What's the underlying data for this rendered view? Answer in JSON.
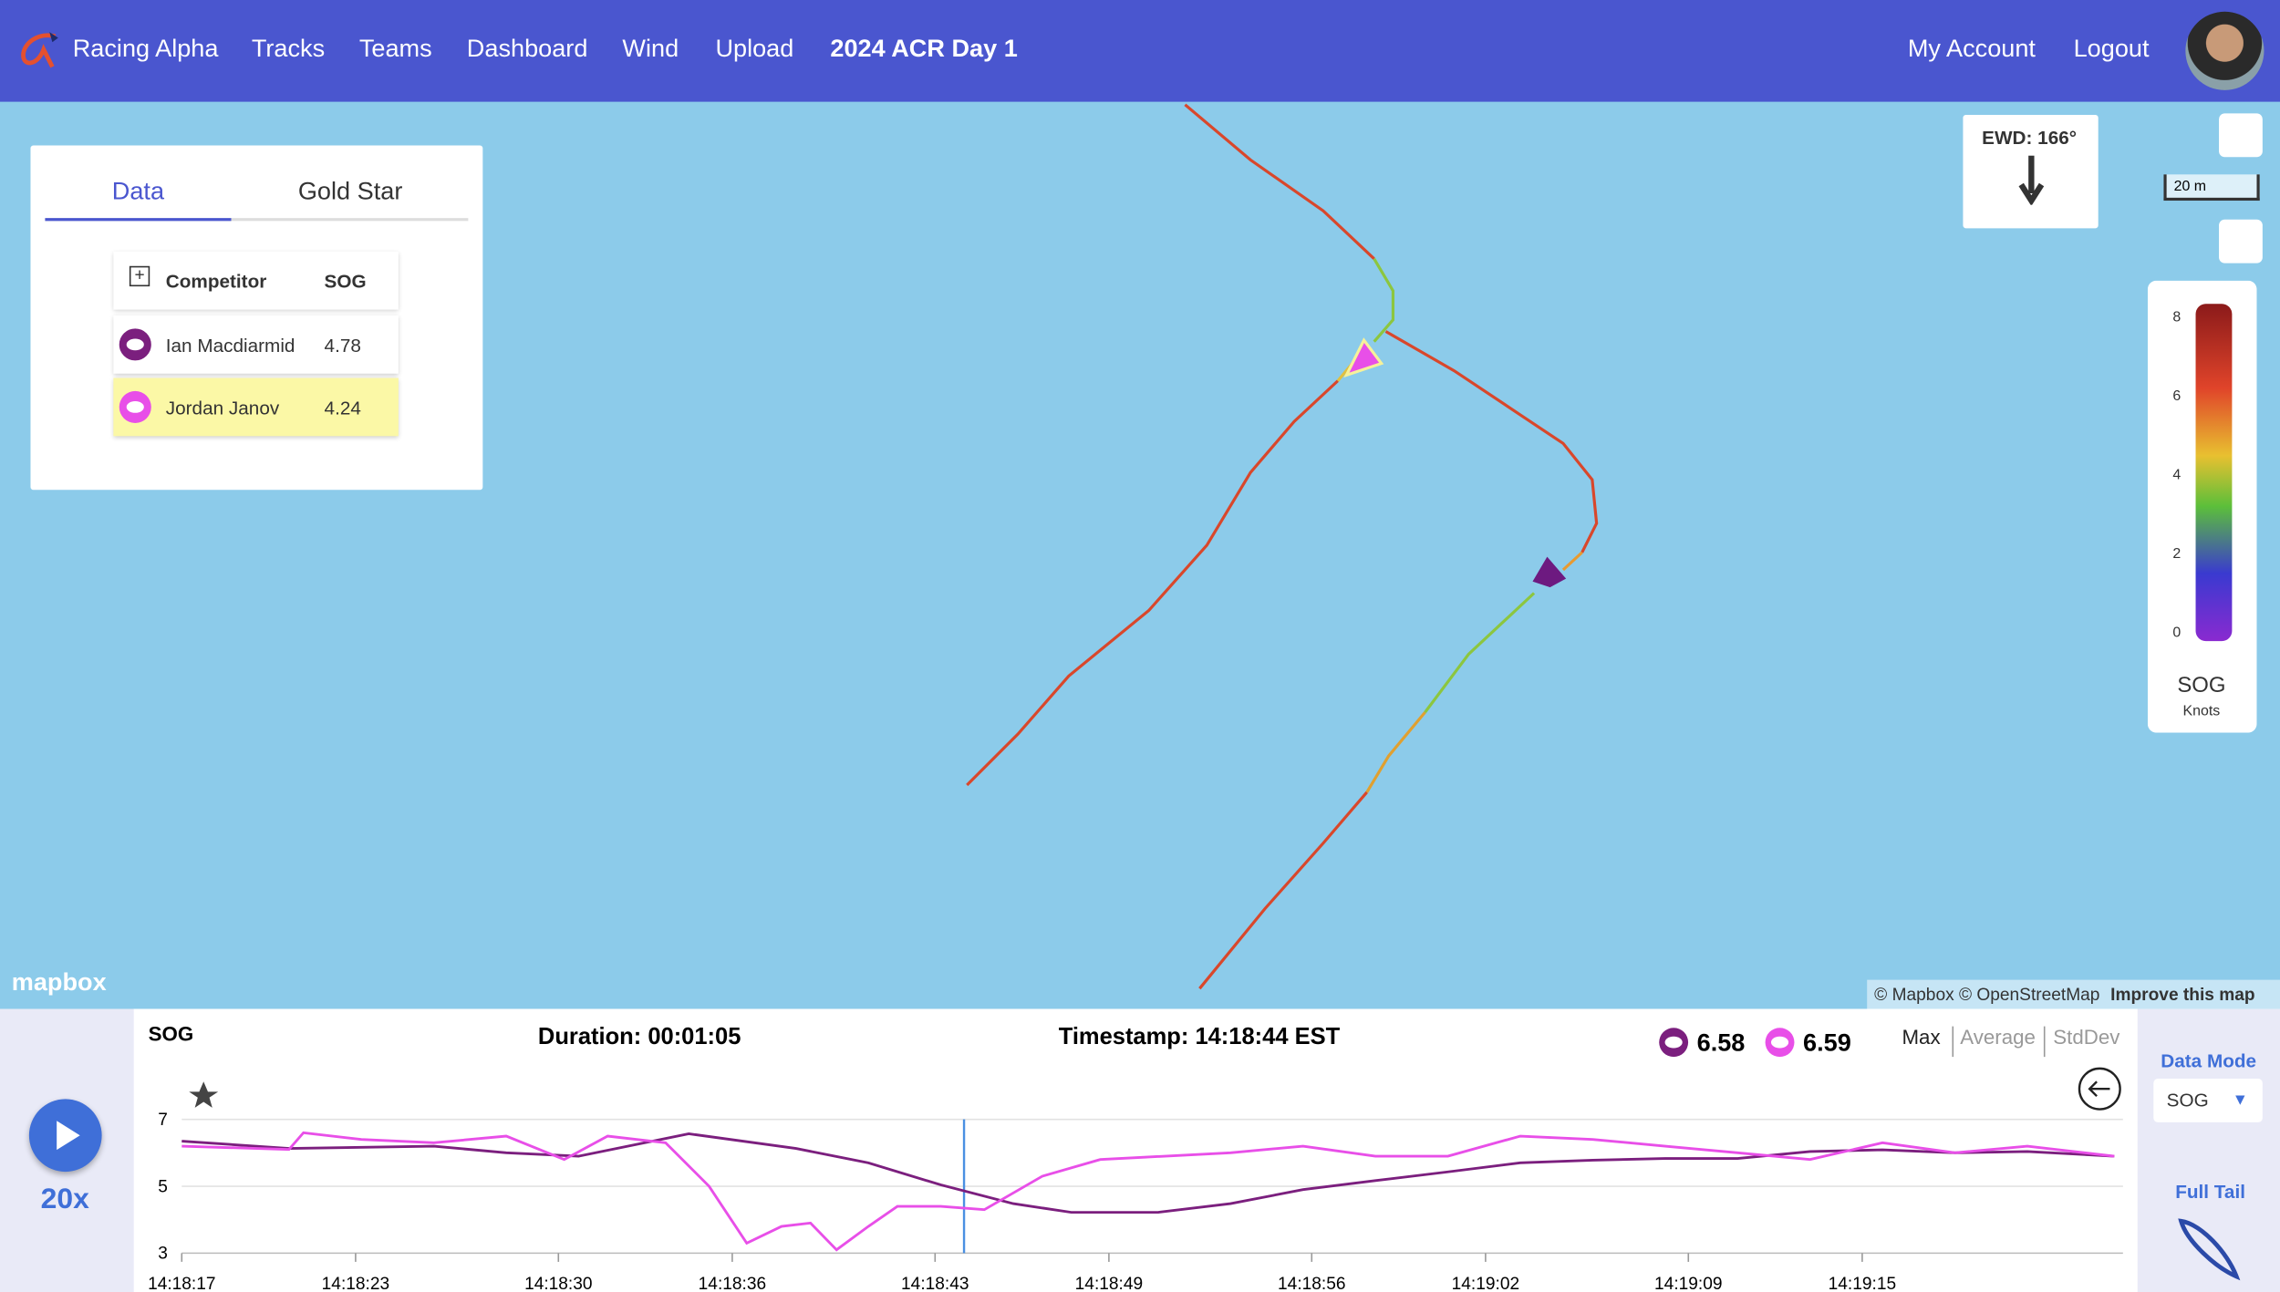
{
  "nav": {
    "brand": "Racing Alpha",
    "items": [
      "Tracks",
      "Teams",
      "Dashboard",
      "Wind",
      "Upload"
    ],
    "event": "2024 ACR Day 1",
    "account": "My Account",
    "logout": "Logout"
  },
  "panel": {
    "tabs": [
      "Data",
      "Gold Star"
    ],
    "header": [
      "Competitor",
      "SOG"
    ],
    "rows": [
      [
        "Ian Macdiarmid",
        "4.78"
      ],
      [
        "Jordan Janov",
        "4.24"
      ]
    ]
  },
  "map": {
    "ewd": "EWD: 166°",
    "scale": "20 m",
    "logo": "mapbox",
    "attribution": "© Mapbox © OpenStreetMap",
    "improve": "Improve this map",
    "legend": {
      "title": "SOG",
      "unit": "Knots",
      "ylim": [
        0,
        8
      ],
      "yticks": [
        0,
        2,
        4,
        6,
        8
      ]
    }
  },
  "chart_data": {
    "type": "line",
    "title": "SOG",
    "duration": "Duration: 00:01:05",
    "timestamp": "Timestamp: 14:18:44 EST",
    "cursor_x": 51524,
    "xlim": [
      51497,
      51564
    ],
    "xticks": [
      {
        "value": 51497,
        "label": "14:18:17"
      },
      {
        "value": 51503,
        "label": "14:18:23"
      },
      {
        "value": 51510,
        "label": "14:18:30"
      },
      {
        "value": 51516,
        "label": "14:18:36"
      },
      {
        "value": 51523,
        "label": "14:18:43"
      },
      {
        "value": 51529,
        "label": "14:18:49"
      },
      {
        "value": 51536,
        "label": "14:18:56"
      },
      {
        "value": 51542,
        "label": "14:19:02"
      },
      {
        "value": 51549,
        "label": "14:19:09"
      },
      {
        "value": 51555,
        "label": "14:19:15"
      }
    ],
    "ylim": [
      3,
      7
    ],
    "yticks": [
      3,
      5,
      7
    ],
    "grid": true,
    "series": [
      {
        "color": "#7b1f7e",
        "current": 6.58,
        "x": [
          51497,
          51500.7,
          51505.7,
          51508.2,
          51510.7,
          51514.5,
          51518.2,
          51520.7,
          51523.2,
          51525.7,
          51527.7,
          51530.7,
          51533.2,
          51535.7,
          51538.2,
          51540.7,
          51543.2,
          51545.7,
          51548.2,
          51550.7,
          51553.2,
          51555.7,
          51558.2,
          51560.7,
          51563.7
        ],
        "values": [
          6.35,
          6.13,
          6.2,
          6.0,
          5.9,
          6.57,
          6.13,
          5.7,
          5.04,
          4.48,
          4.22,
          4.22,
          4.48,
          4.9,
          5.17,
          5.43,
          5.7,
          5.78,
          5.83,
          5.83,
          6.04,
          6.09,
          6.0,
          6.04,
          5.9
        ]
      },
      {
        "color": "#e84fe8",
        "current": 6.59,
        "x": [
          51497,
          51500.7,
          51501.2,
          51503.2,
          51505.7,
          51508.2,
          51510.2,
          51511.7,
          51513.7,
          51515.2,
          51516.5,
          51517.7,
          51518.7,
          51519.6,
          51520.7,
          51521.7,
          51523.2,
          51524.7,
          51526.7,
          51528.7,
          51533.2,
          51535.7,
          51538.2,
          51540.7,
          51543.2,
          51545.7,
          51548.2,
          51550.7,
          51553.2,
          51555.7,
          51558.2,
          51560.7,
          51563.7
        ],
        "values": [
          6.2,
          6.1,
          6.6,
          6.4,
          6.3,
          6.5,
          5.8,
          6.5,
          6.3,
          5.0,
          3.3,
          3.8,
          3.9,
          3.1,
          3.8,
          4.4,
          4.4,
          4.3,
          5.3,
          5.8,
          6.0,
          6.2,
          5.9,
          5.9,
          6.5,
          6.4,
          6.2,
          6.0,
          5.8,
          6.3,
          6.0,
          6.2,
          5.9
        ]
      }
    ],
    "modes": [
      "Max",
      "Average",
      "StdDev"
    ]
  },
  "controls": {
    "speed": "20x",
    "data_mode": "Data Mode",
    "select": "SOG",
    "full_tail": "Full Tail"
  }
}
